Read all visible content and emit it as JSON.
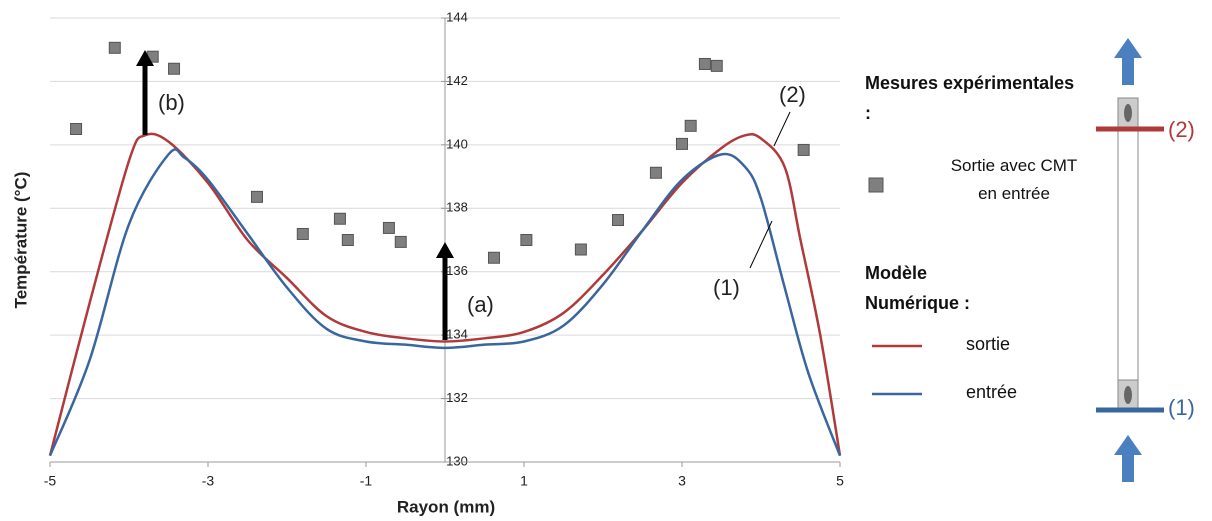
{
  "chart_data": {
    "type": "line",
    "x_label": "Rayon (mm)",
    "y_label": "Température (°C)",
    "xlim": [
      -5,
      5
    ],
    "xticks": [
      -5,
      -3,
      -1,
      1,
      3,
      5
    ],
    "ylim": [
      130,
      144
    ],
    "yticks": [
      130,
      132,
      134,
      136,
      138,
      140,
      142,
      144
    ],
    "grid": true,
    "legend_groups": [
      "Mesures expérimentales :",
      "Modèle Numérique :"
    ],
    "series": [
      {
        "name": "Sortie avec CMT en entrée",
        "color": "#7f7f7f",
        "style": "markers",
        "x": [
          -4.67,
          -4.18,
          -3.7,
          -3.43,
          -2.38,
          -1.8,
          -1.33,
          -1.23,
          -0.71,
          -0.56,
          0.62,
          1.03,
          1.72,
          2.19,
          2.67,
          3.0,
          3.11,
          3.29,
          3.44,
          4.54
        ],
        "values": [
          140.5,
          143.06,
          142.78,
          142.4,
          138.36,
          137.19,
          137.67,
          137.0,
          137.38,
          136.94,
          136.44,
          137.0,
          136.7,
          137.63,
          139.12,
          140.03,
          140.6,
          142.55,
          142.49,
          139.84
        ]
      },
      {
        "name": "sortie",
        "color": "#b03a3a",
        "style": "line",
        "x": [
          -5,
          -4.5,
          -4,
          -3.8,
          -3.5,
          -3,
          -2.5,
          -2,
          -1.5,
          -1,
          -0.5,
          0,
          0.5,
          1,
          1.5,
          2,
          2.5,
          3,
          3.5,
          3.8,
          4,
          4.3,
          4.5,
          4.75,
          5
        ],
        "values": [
          130.2,
          135,
          139.5,
          140.3,
          140.1,
          138.8,
          137,
          135.8,
          134.6,
          134.1,
          133.9,
          133.8,
          133.9,
          134.1,
          134.7,
          135.9,
          137.3,
          138.8,
          139.9,
          140.3,
          140.2,
          139.3,
          137,
          134,
          130.2
        ]
      },
      {
        "name": "entrée",
        "color": "#3a66a0",
        "style": "line",
        "x": [
          -5,
          -4.5,
          -4,
          -3.5,
          -3.3,
          -3,
          -2.5,
          -2,
          -1.5,
          -1,
          -0.5,
          0,
          0.5,
          1,
          1.5,
          2,
          2.5,
          3,
          3.5,
          3.8,
          4,
          4.3,
          4.6,
          5
        ],
        "values": [
          130.2,
          133.2,
          137.5,
          139.7,
          139.6,
          138.9,
          137.2,
          135.5,
          134.2,
          133.8,
          133.7,
          133.6,
          133.7,
          133.8,
          134.3,
          135.6,
          137.3,
          138.9,
          139.7,
          139.3,
          138.3,
          135.5,
          132.8,
          130.2
        ]
      }
    ],
    "annotations": [
      "(a)",
      "(b)",
      "(2)",
      "(1)"
    ],
    "diagram_labels": [
      "(2)",
      "(1)"
    ]
  }
}
